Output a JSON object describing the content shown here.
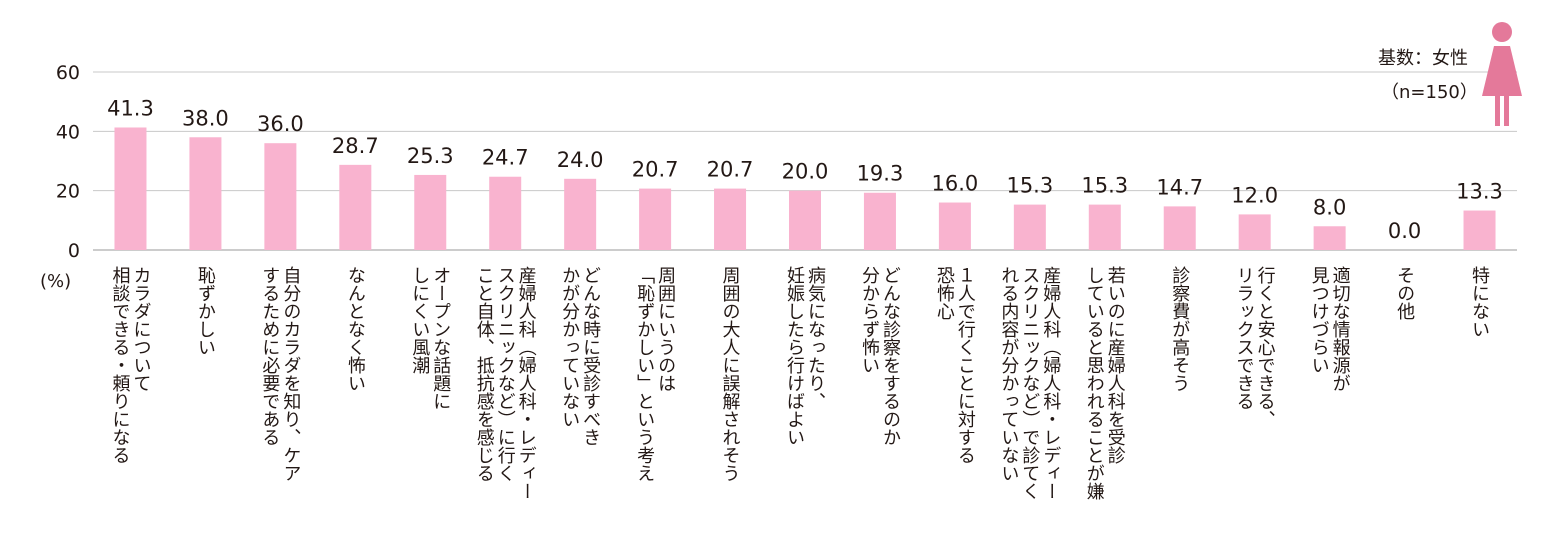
{
  "chart_data": {
    "type": "bar",
    "unit_label": "(%)",
    "ylim": [
      0,
      60
    ],
    "yticks": [
      "0",
      "20",
      "40",
      "60"
    ],
    "base_label": "基数：女性",
    "n_label": "（n=150）",
    "bar_color": "#f9b3cf",
    "icon_color": "#e4799a",
    "categories": [
      [
        "カラダについて",
        "相談できる・頼りになる"
      ],
      [
        "恥ずかしい"
      ],
      [
        "自分のカラダを知り、ケア",
        "するために必要である"
      ],
      [
        "なんとなく怖い"
      ],
      [
        "オープンな話題に",
        "しにくい風潮"
      ],
      [
        "産婦人科（婦人科・レディー",
        "スクリニックなど）に行く",
        "こと自体、抵抗感を感じる"
      ],
      [
        "どんな時に受診すべき",
        "かが分かっていない"
      ],
      [
        "周囲にいうのは",
        "「恥ずかしい」という考え"
      ],
      [
        "周囲の大人に誤解されそう"
      ],
      [
        "病気になったり、",
        "妊娠したら行けばよい"
      ],
      [
        "どんな診察をするのか",
        "分からず怖い"
      ],
      [
        "１人で行くことに対する",
        "恐怖心"
      ],
      [
        "産婦人科（婦人科・レディー",
        "スクリニックなど）で診てく",
        "れる内容が分かっていない"
      ],
      [
        "若いのに産婦人科を受診",
        "していると思われることが嫌"
      ],
      [
        "診察費が高そう"
      ],
      [
        "行くと安心できる、",
        "リラックスできる"
      ],
      [
        "適切な情報源が",
        "見つけづらい"
      ],
      [
        "その他"
      ],
      [
        "特にない"
      ]
    ],
    "values": [
      41.3,
      38.0,
      36.0,
      28.7,
      25.3,
      24.7,
      24.0,
      20.7,
      20.7,
      20.0,
      19.3,
      16.0,
      15.3,
      15.3,
      14.7,
      12.0,
      8.0,
      0.0,
      13.3
    ],
    "value_labels": [
      "41.3",
      "38.0",
      "36.0",
      "28.7",
      "25.3",
      "24.7",
      "24.0",
      "20.7",
      "20.7",
      "20.0",
      "19.3",
      "16.0",
      "15.3",
      "15.3",
      "14.7",
      "12.0",
      "8.0",
      "0.0",
      "13.3"
    ]
  }
}
